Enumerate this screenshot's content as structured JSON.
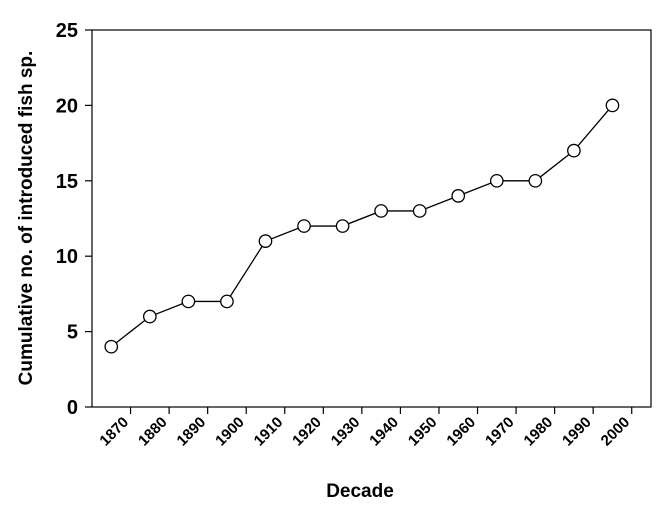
{
  "chart_data": {
    "type": "line",
    "title": "",
    "xlabel": "Decade",
    "ylabel": "Cumulative no. of introduced fish sp.",
    "categories": [
      "1870",
      "1880",
      "1890",
      "1900",
      "1910",
      "1920",
      "1930",
      "1940",
      "1950",
      "1960",
      "1970",
      "1980",
      "1990",
      "2000"
    ],
    "series": [
      {
        "values": [
          4,
          6,
          7,
          7,
          11,
          12,
          12,
          13,
          13,
          14,
          15,
          15,
          17,
          20
        ]
      }
    ],
    "ylim": [
      0,
      25
    ],
    "yticks": [
      "0",
      "5",
      "10",
      "15",
      "20",
      "25"
    ],
    "grid": false,
    "legend": "none",
    "colors": {
      "line": "#000000",
      "marker_fill": "#ffffff",
      "marker_stroke": "#000000",
      "axis": "#000000"
    }
  }
}
